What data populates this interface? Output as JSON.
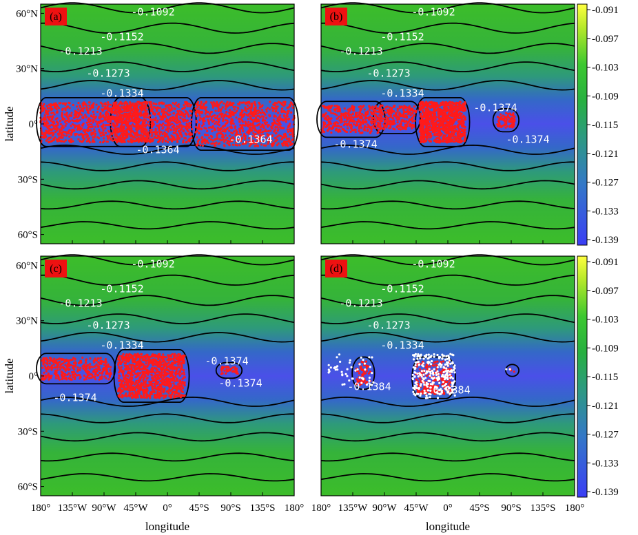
{
  "chart_data": [
    {
      "type": "heatmap",
      "panel": "(a)",
      "xlabel": "",
      "ylabel": "latitude",
      "contour_labels": [
        "-0.1092",
        "-0.1152",
        "-0.1213",
        "-0.1273",
        "-0.1334",
        "-0.1364",
        "-0.1364"
      ],
      "scatter": [
        {
          "color": "#ff1a1a",
          "clusters": [
            {
              "lon": [
                -180,
                -30
              ],
              "lat": [
                -10,
                12
              ],
              "n": 900
            },
            {
              "lon": [
                -75,
                35
              ],
              "lat": [
                -10,
                12
              ],
              "n": 700
            },
            {
              "lon": [
                40,
                180
              ],
              "lat": [
                -12,
                12
              ],
              "n": 800
            }
          ]
        }
      ],
      "colorbar": false
    },
    {
      "type": "heatmap",
      "panel": "(b)",
      "xlabel": "",
      "ylabel": "",
      "contour_labels": [
        "-0.1092",
        "-0.1152",
        "-0.1213",
        "-0.1273",
        "-0.1334",
        "-0.1374",
        "-0.1374",
        "-0.1374"
      ],
      "scatter": [
        {
          "color": "#ff1a1a",
          "clusters": [
            {
              "lon": [
                -180,
                -95
              ],
              "lat": [
                -5,
                10
              ],
              "n": 350
            },
            {
              "lon": [
                -100,
                -45
              ],
              "lat": [
                -3,
                10
              ],
              "n": 250
            },
            {
              "lon": [
                -40,
                25
              ],
              "lat": [
                -10,
                12
              ],
              "n": 900
            },
            {
              "lon": [
                70,
                95
              ],
              "lat": [
                -2,
                6
              ],
              "n": 80
            }
          ]
        }
      ],
      "colorbar": true
    },
    {
      "type": "heatmap",
      "panel": "(c)",
      "xlabel": "longitude",
      "ylabel": "latitude",
      "contour_labels": [
        "-0.1092",
        "-0.1152",
        "-0.1213",
        "-0.1273",
        "-0.1334",
        "-0.1374",
        "-0.1374",
        "-0.1374"
      ],
      "scatter": [
        {
          "color": "#ff1a1a",
          "clusters": [
            {
              "lon": [
                -180,
                -80
              ],
              "lat": [
                -2,
                10
              ],
              "n": 350
            },
            {
              "lon": [
                -70,
                25
              ],
              "lat": [
                -12,
                12
              ],
              "n": 1000
            },
            {
              "lon": [
                75,
                100
              ],
              "lat": [
                1,
                5
              ],
              "n": 40
            }
          ]
        }
      ],
      "colorbar": false
    },
    {
      "type": "heatmap",
      "panel": "(d)",
      "xlabel": "longitude",
      "ylabel": "",
      "contour_labels": [
        "-0.1092",
        "-0.1152",
        "-0.1213",
        "-0.1273",
        "-0.1334",
        "-0.1384",
        "-0.1384"
      ],
      "scatter": [
        {
          "color": "#ff1a1a",
          "clusters": [
            {
              "lon": [
                -130,
                -110
              ],
              "lat": [
                -5,
                8
              ],
              "n": 60
            },
            {
              "lon": [
                -45,
                5
              ],
              "lat": [
                -10,
                8
              ],
              "n": 250
            },
            {
              "lon": [
                88,
                95
              ],
              "lat": [
                2,
                4
              ],
              "n": 3
            }
          ]
        },
        {
          "color": "#ffffff",
          "clusters": [
            {
              "lon": [
                -170,
                -105
              ],
              "lat": [
                -5,
                12
              ],
              "n": 50
            },
            {
              "lon": [
                -50,
                10
              ],
              "lat": [
                -12,
                12
              ],
              "n": 250
            },
            {
              "lon": [
                80,
                95
              ],
              "lat": [
                2,
                5
              ],
              "n": 2
            }
          ]
        }
      ],
      "colorbar": true
    }
  ],
  "axes": {
    "x_ticks": [
      "180°",
      "135°W",
      "90°W",
      "45°W",
      "0°",
      "45°S",
      "90°S",
      "135°S",
      "180°"
    ],
    "x_values": [
      -180,
      -135,
      -90,
      -45,
      0,
      45,
      90,
      135,
      180
    ],
    "y_ticks": [
      "60°N",
      "30°N",
      "0°",
      "30°S",
      "60°S"
    ],
    "y_values": [
      60,
      30,
      0,
      -30,
      -60
    ],
    "xlim": [
      -180,
      180
    ],
    "ylim": [
      -65,
      65
    ]
  },
  "colorbar": {
    "ticks": [
      "-0.091",
      "-0.097",
      "-0.103",
      "-0.109",
      "-0.115",
      "-0.121",
      "-0.127",
      "-0.133",
      "-0.139"
    ],
    "range": [
      -0.139,
      -0.091
    ],
    "colors": [
      "#3b3ef5",
      "#3478c8",
      "#2d9a80",
      "#27b040",
      "#3cc830",
      "#b4e82a",
      "#ffff40"
    ]
  },
  "colors": {
    "field_equator": "#4a55e6",
    "field_mid": "#2f8aa8",
    "field_pole": "#37b832",
    "contour": "#000000",
    "panel_label_bg": "#ee1111"
  }
}
